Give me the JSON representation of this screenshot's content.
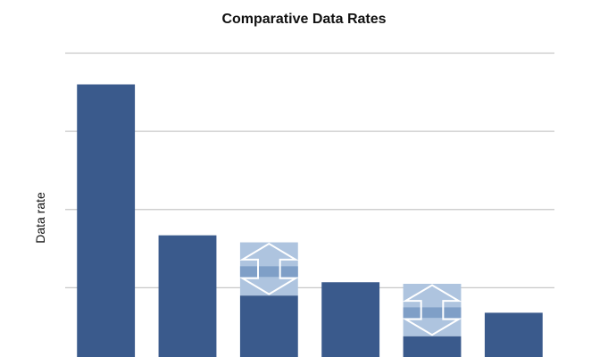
{
  "chart_data": {
    "type": "bar",
    "title": "Comparative Data Rates",
    "xlabel": "",
    "ylabel": "Data rate",
    "ylim": [
      0,
      4
    ],
    "grid": true,
    "legend": "none",
    "categories": [
      "",
      "",
      "",
      "",
      "",
      ""
    ],
    "values": [
      3.6,
      1.67,
      0.9,
      1.07,
      0.38,
      0.68
    ],
    "variable_ranges": [
      null,
      null,
      {
        "low": 0.9,
        "high": 1.58
      },
      null,
      {
        "low": 0.38,
        "high": 1.05
      },
      null
    ],
    "colors": {
      "bar": "#3a5a8c",
      "range_light": "#aec4df",
      "range_mid": "#7f9fc7",
      "arrow": "#ffffff",
      "grid": "#c8c8c8"
    }
  }
}
